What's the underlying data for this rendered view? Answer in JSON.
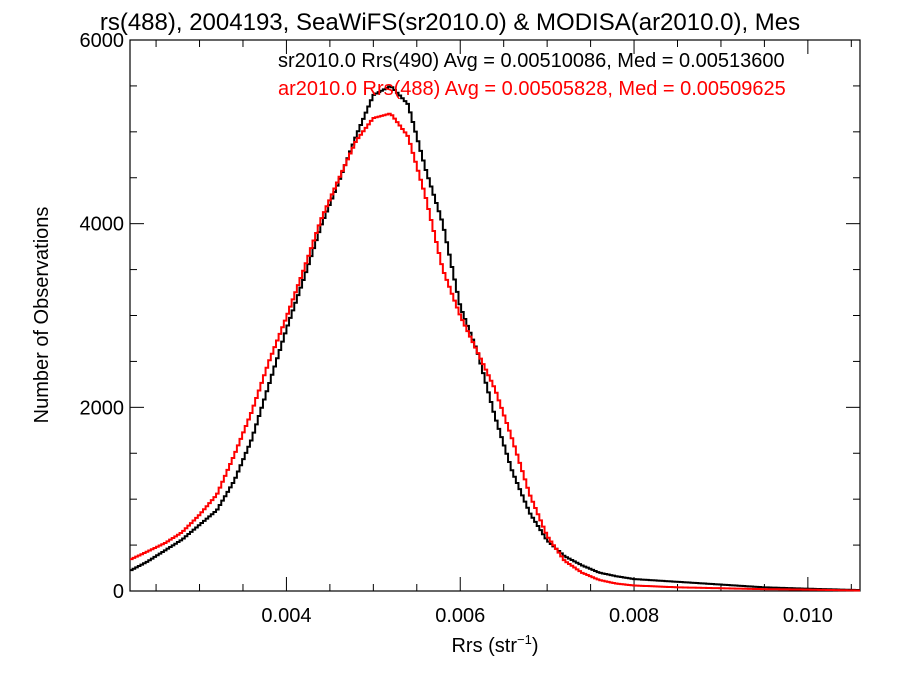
{
  "chart_data": {
    "type": "line",
    "title": "rs(488), 2004193, SeaWiFS(sr2010.0) & MODISA(ar2010.0), Mes",
    "xlabel": "Rrs (str",
    "xlabel_sup": "−1",
    "xlabel_close": ")",
    "ylabel": "Number of Observations",
    "xlim": [
      0.0022,
      0.0106
    ],
    "ylim": [
      0,
      6000
    ],
    "grid": false,
    "legend_position": "top-right",
    "x_ticks": [
      {
        "value": 0.004,
        "label": "0.004"
      },
      {
        "value": 0.006,
        "label": "0.006"
      },
      {
        "value": 0.008,
        "label": "0.008"
      },
      {
        "value": 0.01,
        "label": "0.010"
      }
    ],
    "y_ticks": [
      {
        "value": 0,
        "label": "0"
      },
      {
        "value": 2000,
        "label": "2000"
      },
      {
        "value": 4000,
        "label": "4000"
      },
      {
        "value": 6000,
        "label": "6000"
      }
    ],
    "series": [
      {
        "name": "sr2010.0 Rrs(490) Avg = 0.00510086, Med = 0.00513600",
        "color": "#000000",
        "x": [
          0.0022,
          0.0024,
          0.0026,
          0.0028,
          0.003,
          0.0032,
          0.0034,
          0.0036,
          0.0038,
          0.004,
          0.0042,
          0.0044,
          0.0046,
          0.0048,
          0.005,
          0.0052,
          0.0054,
          0.0056,
          0.0058,
          0.006,
          0.0062,
          0.0064,
          0.0066,
          0.0068,
          0.007,
          0.0072,
          0.0074,
          0.0076,
          0.0078,
          0.008,
          0.0085,
          0.009,
          0.0095,
          0.01,
          0.0106
        ],
        "y": [
          220,
          320,
          440,
          560,
          720,
          880,
          1200,
          1650,
          2250,
          2850,
          3400,
          3980,
          4450,
          4950,
          5400,
          5500,
          5300,
          4600,
          4000,
          3100,
          2600,
          1900,
          1300,
          850,
          550,
          380,
          280,
          200,
          160,
          130,
          100,
          70,
          40,
          25,
          10
        ]
      },
      {
        "name": "ar2010.0 Rrs(488) Avg = 0.00505828, Med = 0.00509625",
        "color": "#ff0000",
        "x": [
          0.0022,
          0.0024,
          0.0026,
          0.0028,
          0.003,
          0.0032,
          0.0034,
          0.0036,
          0.0038,
          0.004,
          0.0042,
          0.0044,
          0.0046,
          0.0048,
          0.005,
          0.0052,
          0.0054,
          0.0056,
          0.0058,
          0.006,
          0.0062,
          0.0064,
          0.0066,
          0.0068,
          0.007,
          0.0072,
          0.0074,
          0.0076,
          0.0078,
          0.008,
          0.0085,
          0.009,
          0.0095,
          0.01,
          0.0106
        ],
        "y": [
          340,
          430,
          520,
          640,
          830,
          1050,
          1480,
          1950,
          2500,
          2980,
          3500,
          4050,
          4480,
          4900,
          5150,
          5200,
          4950,
          4300,
          3500,
          3000,
          2600,
          2200,
          1650,
          1050,
          600,
          330,
          200,
          120,
          80,
          60,
          40,
          30,
          20,
          15,
          5
        ]
      }
    ]
  }
}
